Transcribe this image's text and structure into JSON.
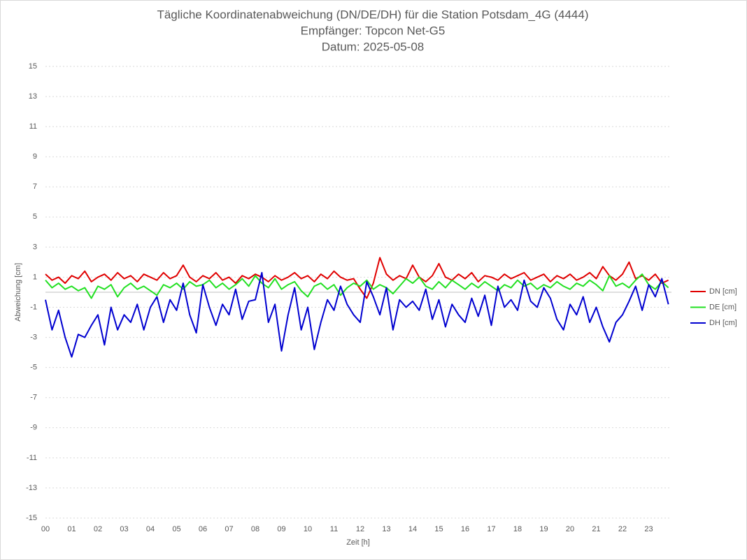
{
  "chart_data": {
    "type": "line",
    "title": "Tägliche Koordinatenabweichung (DN/DE/DH) für die Station Potsdam_4G (4444)",
    "subtitle": "Empfänger: Topcon Net-G5",
    "date": "Datum: 2025-05-08",
    "x_label": "Zeit [h]",
    "y_label": "Abweichung [cm]",
    "xlim": [
      0,
      24
    ],
    "xticks": [
      {
        "value": 0,
        "label": "00"
      },
      {
        "value": 1,
        "label": "01"
      },
      {
        "value": 2,
        "label": "02"
      },
      {
        "value": 3,
        "label": "03"
      },
      {
        "value": 4,
        "label": "04"
      },
      {
        "value": 5,
        "label": "05"
      },
      {
        "value": 6,
        "label": "06"
      },
      {
        "value": 7,
        "label": "07"
      },
      {
        "value": 8,
        "label": "08"
      },
      {
        "value": 9,
        "label": "09"
      },
      10,
      11,
      12,
      13,
      14,
      15,
      16,
      17,
      18,
      19,
      20,
      21,
      22,
      23
    ],
    "ylim": [
      -15,
      15
    ],
    "yticks": [
      -15,
      -13,
      -11,
      -9,
      -7,
      -5,
      -3,
      -1,
      1,
      3,
      5,
      7,
      9,
      11,
      13,
      15
    ],
    "grid": true,
    "legend": "right",
    "x": [
      0,
      0.25,
      0.5,
      0.75,
      1,
      1.25,
      1.5,
      1.75,
      2,
      2.25,
      2.5,
      2.75,
      3,
      3.25,
      3.5,
      3.75,
      4,
      4.25,
      4.5,
      4.75,
      5,
      5.25,
      5.5,
      5.75,
      6,
      6.25,
      6.5,
      6.75,
      7,
      7.25,
      7.5,
      7.75,
      8,
      8.25,
      8.5,
      8.75,
      9,
      9.25,
      9.5,
      9.75,
      10,
      10.25,
      10.5,
      10.75,
      11,
      11.25,
      11.5,
      11.75,
      12,
      12.25,
      12.5,
      12.75,
      13,
      13.25,
      13.5,
      13.75,
      14,
      14.25,
      14.5,
      14.75,
      15,
      15.25,
      15.5,
      15.75,
      16,
      16.25,
      16.5,
      16.75,
      17,
      17.25,
      17.5,
      17.75,
      18,
      18.25,
      18.5,
      18.75,
      19,
      19.25,
      19.5,
      19.75,
      20,
      20.25,
      20.5,
      20.75,
      21,
      21.25,
      21.5,
      21.75,
      22,
      22.25,
      22.5,
      22.75,
      23,
      23.25,
      23.5,
      23.75
    ],
    "series": [
      {
        "name": "DN [cm]",
        "color": "#e00000",
        "values": [
          1.2,
          0.8,
          1.0,
          0.6,
          1.1,
          0.9,
          1.4,
          0.7,
          1.0,
          1.2,
          0.8,
          1.3,
          0.9,
          1.1,
          0.7,
          1.2,
          1.0,
          0.8,
          1.3,
          0.9,
          1.1,
          1.8,
          1.0,
          0.7,
          1.1,
          0.9,
          1.3,
          0.8,
          1.0,
          0.6,
          1.1,
          0.9,
          1.2,
          1.0,
          0.7,
          1.1,
          0.8,
          1.0,
          1.3,
          0.9,
          1.1,
          0.7,
          1.2,
          0.9,
          1.4,
          1.0,
          0.8,
          0.9,
          0.2,
          -0.4,
          0.6,
          2.3,
          1.2,
          0.8,
          1.1,
          0.9,
          1.8,
          1.0,
          0.7,
          1.1,
          1.9,
          1.0,
          0.8,
          1.2,
          0.9,
          1.3,
          0.7,
          1.1,
          1.0,
          0.8,
          1.2,
          0.9,
          1.1,
          1.3,
          0.8,
          1.0,
          1.2,
          0.7,
          1.1,
          0.9,
          1.2,
          0.8,
          1.0,
          1.3,
          0.9,
          1.7,
          1.1,
          0.8,
          1.2,
          2.0,
          0.9,
          1.1,
          0.8,
          1.2,
          0.6,
          0.8
        ]
      },
      {
        "name": "DE [cm]",
        "color": "#22e022",
        "values": [
          0.8,
          0.3,
          0.6,
          0.2,
          0.4,
          0.1,
          0.3,
          -0.4,
          0.4,
          0.2,
          0.5,
          -0.3,
          0.3,
          0.6,
          0.2,
          0.4,
          0.1,
          -0.2,
          0.5,
          0.3,
          0.6,
          0.2,
          0.7,
          0.4,
          0.5,
          0.8,
          0.3,
          0.6,
          0.2,
          0.5,
          0.9,
          0.4,
          1.1,
          0.6,
          0.3,
          0.9,
          0.2,
          0.5,
          0.7,
          0.1,
          -0.3,
          0.4,
          0.6,
          0.2,
          0.5,
          -0.2,
          0.3,
          0.6,
          0.4,
          0.8,
          0.2,
          0.5,
          0.3,
          -0.1,
          0.4,
          0.9,
          0.6,
          1.0,
          0.4,
          0.2,
          0.7,
          0.3,
          0.8,
          0.5,
          0.2,
          0.6,
          0.3,
          0.7,
          0.4,
          0.1,
          0.5,
          0.3,
          0.8,
          0.4,
          0.6,
          0.2,
          0.5,
          0.3,
          0.7,
          0.4,
          0.2,
          0.6,
          0.4,
          0.8,
          0.5,
          0.1,
          1.1,
          0.4,
          0.6,
          0.3,
          0.8,
          1.2,
          0.5,
          0.2,
          0.7,
          0.3
        ]
      },
      {
        "name": "DH [cm]",
        "color": "#0000d0",
        "values": [
          -0.5,
          -2.5,
          -1.2,
          -3.0,
          -4.3,
          -2.8,
          -3.0,
          -2.2,
          -1.5,
          -3.5,
          -1.0,
          -2.5,
          -1.5,
          -2.0,
          -0.8,
          -2.5,
          -1.0,
          -0.3,
          -2.0,
          -0.5,
          -1.2,
          0.6,
          -1.5,
          -2.7,
          0.5,
          -1.0,
          -2.2,
          -0.8,
          -1.5,
          0.2,
          -1.8,
          -0.6,
          -0.5,
          1.3,
          -2.0,
          -0.8,
          -3.9,
          -1.5,
          0.3,
          -2.5,
          -1.0,
          -3.8,
          -2.0,
          -0.5,
          -1.2,
          0.4,
          -0.8,
          -1.5,
          -2.0,
          0.7,
          -0.3,
          -1.5,
          0.3,
          -2.5,
          -0.5,
          -1.0,
          -0.6,
          -1.2,
          0.2,
          -1.8,
          -0.5,
          -2.3,
          -0.8,
          -1.5,
          -2.0,
          -0.4,
          -1.6,
          -0.2,
          -2.2,
          0.4,
          -1.0,
          -0.5,
          -1.2,
          0.8,
          -0.6,
          -1.0,
          0.3,
          -0.4,
          -1.8,
          -2.5,
          -0.8,
          -1.5,
          -0.3,
          -2.0,
          -1.0,
          -2.3,
          -3.3,
          -2.0,
          -1.5,
          -0.6,
          0.4,
          -1.2,
          0.5,
          -0.3,
          0.9,
          -0.8
        ]
      }
    ]
  }
}
